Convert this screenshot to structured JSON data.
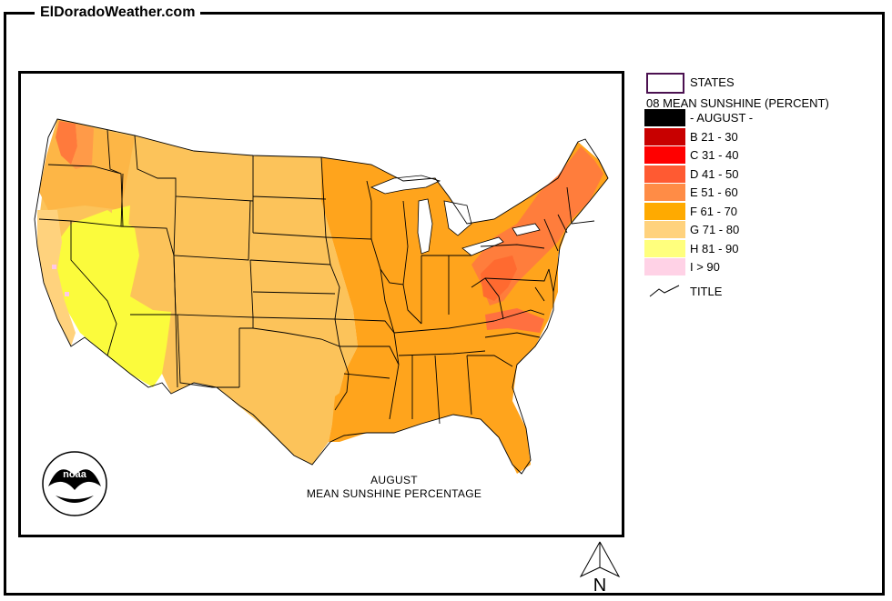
{
  "site": {
    "title": "ElDoradoWeather.com"
  },
  "map": {
    "caption_line1": "AUGUST",
    "caption_line2": "MEAN SUNSHINE PERCENTAGE",
    "logo_text": "noaa",
    "north_label": "N",
    "region_colors": {
      "background": "#ffffff",
      "F": "#ffaa00",
      "G": "#fccd5a",
      "E": "#ff8c40",
      "D": "#ff6a30",
      "H": "#ffff5a",
      "I": "#ffd1ec"
    }
  },
  "legend": {
    "states_label": "STATES",
    "header": "08 MEAN SUNSHINE (PERCENT)",
    "items": [
      {
        "label": "- AUGUST -",
        "color": "#000000"
      },
      {
        "label": "B 21 - 30",
        "color": "#c80000"
      },
      {
        "label": "C 31 - 40",
        "color": "#ff0000"
      },
      {
        "label": "D 41 - 50",
        "color": "#ff5a32"
      },
      {
        "label": "E 51 - 60",
        "color": "#ff8c46"
      },
      {
        "label": "F 61 - 70",
        "color": "#ffaa00"
      },
      {
        "label": "G 71 - 80",
        "color": "#ffd27d"
      },
      {
        "label": "H 81 - 90",
        "color": "#ffff7d"
      },
      {
        "label": "I > 90",
        "color": "#ffd2e6"
      }
    ],
    "title_label": "TITLE"
  }
}
